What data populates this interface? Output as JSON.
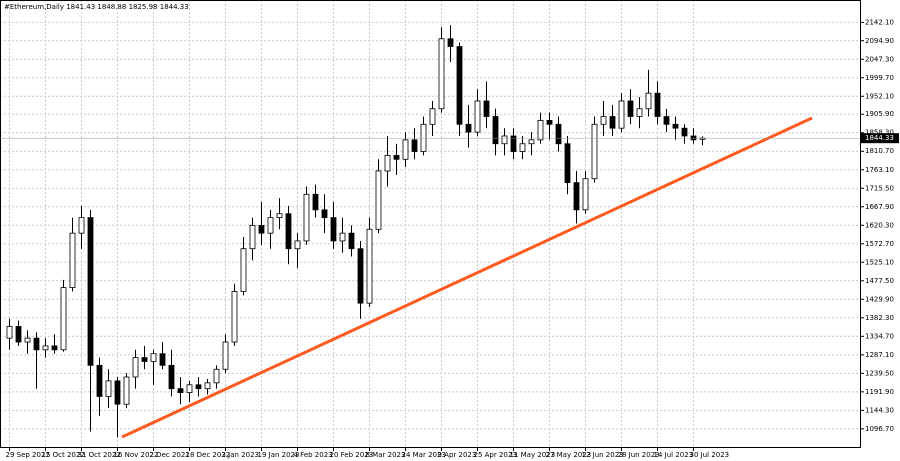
{
  "chart_data": {
    "type": "candlestick",
    "title": "#Ethereum,Daily  1841.43 1848.88 1825.98 1844.33",
    "categories": [
      "29 Sep 2022",
      null,
      null,
      null,
      "15 Oct 2022",
      null,
      null,
      null,
      "31 Oct 2022",
      null,
      null,
      null,
      "16 Nov 2022",
      null,
      null,
      null,
      "2 Dec 2022",
      null,
      null,
      null,
      "18 Dec 2022",
      null,
      null,
      null,
      "3 Jan 2023",
      null,
      null,
      null,
      "19 Jan 2023",
      null,
      null,
      null,
      "4 Feb 2023",
      null,
      null,
      null,
      "20 Feb 2023",
      null,
      null,
      null,
      "8 Mar 2023",
      null,
      null,
      null,
      "24 Mar 2023",
      null,
      null,
      null,
      "9 Apr 2023",
      null,
      null,
      null,
      "25 Apr 2023",
      null,
      null,
      null,
      "11 May 2023",
      null,
      null,
      null,
      "27 May 2023",
      null,
      null,
      null,
      "12 Jun 2023",
      null,
      null,
      null,
      "28 Jun 2023",
      null,
      null,
      null,
      "14 Jul 2023",
      null,
      null,
      null,
      "30 Jul 2023",
      null
    ],
    "open": [
      1330,
      1360,
      1320,
      1330,
      1300,
      1310,
      1300,
      1460,
      1600,
      1640,
      1260,
      1180,
      1220,
      1160,
      1230,
      1280,
      1270,
      1290,
      1260,
      1200,
      1190,
      1210,
      1200,
      1215,
      1250,
      1320,
      1450,
      1560,
      1620,
      1600,
      1640,
      1650,
      1560,
      1580,
      1700,
      1660,
      1640,
      1580,
      1600,
      1560,
      1420,
      1610,
      1760,
      1800,
      1790,
      1840,
      1810,
      1880,
      1920,
      2100,
      2080,
      1880,
      1860,
      1940,
      1900,
      1830,
      1850,
      1810,
      1830,
      1840,
      1890,
      1880,
      1830,
      1730,
      1660,
      1740,
      1880,
      1900,
      1870,
      1940,
      1900,
      1920,
      1960,
      1900,
      1880,
      1870,
      1850,
      1841.43
    ],
    "high": [
      1380,
      1375,
      1350,
      1345,
      1330,
      1340,
      1480,
      1640,
      1670,
      1660,
      1280,
      1250,
      1230,
      1240,
      1300,
      1310,
      1300,
      1320,
      1300,
      1230,
      1220,
      1230,
      1225,
      1260,
      1340,
      1470,
      1590,
      1640,
      1680,
      1660,
      1690,
      1670,
      1600,
      1720,
      1725,
      1700,
      1680,
      1640,
      1620,
      1580,
      1640,
      1790,
      1850,
      1830,
      1860,
      1870,
      1900,
      1940,
      2130,
      2135,
      2090,
      1930,
      1970,
      1990,
      1920,
      1870,
      1870,
      1850,
      1860,
      1910,
      1910,
      1900,
      1850,
      1760,
      1760,
      1900,
      1940,
      1930,
      1960,
      1970,
      1950,
      2020,
      1990,
      1920,
      1900,
      1880,
      1870,
      1848.88
    ],
    "low": [
      1300,
      1310,
      1290,
      1200,
      1280,
      1290,
      1295,
      1450,
      1560,
      1090,
      1130,
      1150,
      1075,
      1150,
      1200,
      1250,
      1210,
      1250,
      1180,
      1160,
      1165,
      1180,
      1185,
      1200,
      1240,
      1310,
      1440,
      1530,
      1570,
      1560,
      1610,
      1520,
      1510,
      1570,
      1640,
      1600,
      1560,
      1550,
      1540,
      1380,
      1410,
      1600,
      1720,
      1750,
      1770,
      1790,
      1800,
      1850,
      1910,
      2040,
      1850,
      1820,
      1850,
      1870,
      1800,
      1800,
      1790,
      1790,
      1800,
      1830,
      1840,
      1810,
      1700,
      1625,
      1650,
      1730,
      1850,
      1850,
      1860,
      1880,
      1870,
      1900,
      1880,
      1860,
      1840,
      1830,
      1830,
      1825.98
    ],
    "close": [
      1360,
      1320,
      1330,
      1300,
      1310,
      1300,
      1460,
      1600,
      1640,
      1260,
      1180,
      1220,
      1160,
      1230,
      1280,
      1270,
      1290,
      1260,
      1200,
      1190,
      1210,
      1200,
      1215,
      1250,
      1320,
      1450,
      1560,
      1620,
      1600,
      1640,
      1650,
      1560,
      1580,
      1700,
      1660,
      1640,
      1580,
      1600,
      1560,
      1420,
      1610,
      1760,
      1800,
      1790,
      1840,
      1810,
      1880,
      1920,
      2100,
      2080,
      1880,
      1860,
      1940,
      1900,
      1830,
      1850,
      1810,
      1830,
      1840,
      1890,
      1880,
      1830,
      1730,
      1660,
      1740,
      1880,
      1900,
      1870,
      1940,
      1900,
      1920,
      1960,
      1900,
      1880,
      1870,
      1850,
      1840,
      1844.33
    ],
    "last_price": 1844.33,
    "ylim": [
      1050,
      2192
    ],
    "yticks": [
      {
        "value": 2142.1,
        "label": "2142.10"
      },
      {
        "value": 2094.9,
        "label": "2094.90"
      },
      {
        "value": 2047.3,
        "label": "2047.30"
      },
      {
        "value": 1999.7,
        "label": "1999.70"
      },
      {
        "value": 1952.1,
        "label": "1952.10"
      },
      {
        "value": 1905.9,
        "label": "1905.90"
      },
      {
        "value": 1858.3,
        "label": "1858.30"
      },
      {
        "value": 1810.7,
        "label": "1810.70"
      },
      {
        "value": 1763.1,
        "label": "1763.10"
      },
      {
        "value": 1715.5,
        "label": "1715.50"
      },
      {
        "value": 1667.9,
        "label": "1667.90"
      },
      {
        "value": 1620.3,
        "label": "1620.30"
      },
      {
        "value": 1572.7,
        "label": "1572.70"
      },
      {
        "value": 1525.1,
        "label": "1525.10"
      },
      {
        "value": 1477.5,
        "label": "1477.50"
      },
      {
        "value": 1429.9,
        "label": "1429.90"
      },
      {
        "value": 1382.3,
        "label": "1382.30"
      },
      {
        "value": 1334.7,
        "label": "1334.70"
      },
      {
        "value": 1287.1,
        "label": "1287.10"
      },
      {
        "value": 1239.5,
        "label": "1239.50"
      },
      {
        "value": 1191.9,
        "label": "1191.90"
      },
      {
        "value": 1144.3,
        "label": "1144.30"
      },
      {
        "value": 1096.7,
        "label": "1096.70"
      }
    ],
    "grid": true,
    "up_color": "#ffffff",
    "down_color": "#000000",
    "wick_color": "#000000"
  }
}
